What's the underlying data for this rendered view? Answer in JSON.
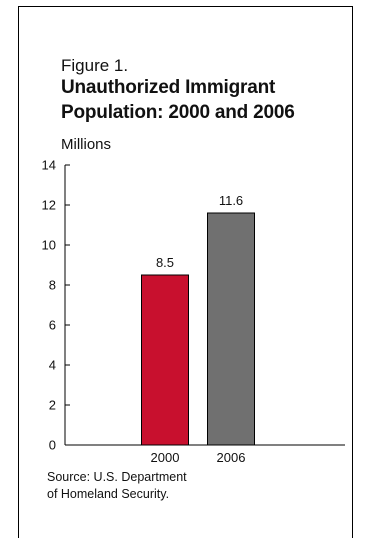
{
  "figure": {
    "label": "Figure 1.",
    "title": "Unauthorized Immigrant Population: 2000 and 2006",
    "units": "Millions",
    "source": "Source: U.S. Department\nof Homeland Security."
  },
  "colors": {
    "bar_2000": "#c8102e",
    "bar_2006": "#707070",
    "axis": "#000000"
  },
  "chart_data": {
    "type": "bar",
    "categories": [
      "2000",
      "2006"
    ],
    "values": [
      8.5,
      11.6
    ],
    "data_labels": [
      "8.5",
      "11.6"
    ],
    "title": "Unauthorized Immigrant Population: 2000 and 2006",
    "xlabel": "",
    "ylabel": "Millions",
    "ylim": [
      0,
      14
    ],
    "yticks": [
      0,
      2,
      4,
      6,
      8,
      10,
      12,
      14
    ],
    "grid": false
  }
}
